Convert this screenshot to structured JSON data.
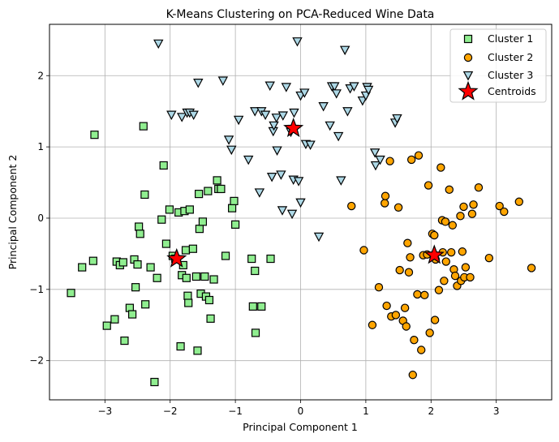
{
  "chart_data": {
    "type": "scatter",
    "title": "K-Means Clustering on PCA-Reduced Wine Data",
    "xlabel": "Principal Component 1",
    "ylabel": "Principal Component 2",
    "xlim": [
      -3.85,
      3.85
    ],
    "ylim": [
      -2.55,
      2.72
    ],
    "xticks": [
      -3,
      -2,
      -1,
      0,
      1,
      2,
      3
    ],
    "yticks": [
      -2,
      -1,
      0,
      1,
      2
    ],
    "grid": true,
    "legend_position": "top-right",
    "series": [
      {
        "name": "Cluster 1",
        "marker": "square",
        "color": "#90ee90",
        "points": [
          [
            -3.52,
            -1.05
          ],
          [
            -3.35,
            -0.69
          ],
          [
            -3.18,
            -0.6
          ],
          [
            -3.16,
            1.17
          ],
          [
            -2.97,
            -1.51
          ],
          [
            -2.85,
            -1.42
          ],
          [
            -2.82,
            -0.61
          ],
          [
            -2.77,
            -0.66
          ],
          [
            -2.72,
            -0.62
          ],
          [
            -2.7,
            -1.72
          ],
          [
            -2.62,
            -1.26
          ],
          [
            -2.58,
            -1.35
          ],
          [
            -2.55,
            -0.58
          ],
          [
            -2.53,
            -0.97
          ],
          [
            -2.5,
            -0.65
          ],
          [
            -2.48,
            -0.12
          ],
          [
            -2.46,
            -0.22
          ],
          [
            -2.41,
            1.29
          ],
          [
            -2.39,
            0.33
          ],
          [
            -2.38,
            -1.21
          ],
          [
            -2.3,
            -0.69
          ],
          [
            -2.24,
            -2.3
          ],
          [
            -2.2,
            -0.84
          ],
          [
            -2.13,
            -0.02
          ],
          [
            -2.1,
            0.74
          ],
          [
            -2.06,
            -0.36
          ],
          [
            -2.01,
            0.12
          ],
          [
            -1.96,
            -0.53
          ],
          [
            -1.92,
            -0.57
          ],
          [
            -1.87,
            0.08
          ],
          [
            -1.84,
            -1.8
          ],
          [
            -1.82,
            -0.8
          ],
          [
            -1.8,
            -0.66
          ],
          [
            -1.78,
            0.1
          ],
          [
            -1.76,
            -0.45
          ],
          [
            -1.75,
            -0.84
          ],
          [
            -1.73,
            -1.09
          ],
          [
            -1.72,
            -1.19
          ],
          [
            -1.7,
            0.12
          ],
          [
            -1.65,
            -0.43
          ],
          [
            -1.6,
            -0.82
          ],
          [
            -1.58,
            -1.86
          ],
          [
            -1.56,
            0.34
          ],
          [
            -1.55,
            -0.15
          ],
          [
            -1.53,
            -1.06
          ],
          [
            -1.5,
            -0.05
          ],
          [
            -1.47,
            -0.82
          ],
          [
            -1.45,
            -1.1
          ],
          [
            -1.42,
            0.38
          ],
          [
            -1.4,
            -1.15
          ],
          [
            -1.38,
            -1.41
          ],
          [
            -1.33,
            -0.86
          ],
          [
            -1.28,
            0.53
          ],
          [
            -1.26,
            0.41
          ],
          [
            -1.22,
            0.41
          ],
          [
            -1.15,
            -0.53
          ],
          [
            -1.05,
            0.14
          ],
          [
            -1.02,
            0.24
          ],
          [
            -1.0,
            -0.09
          ],
          [
            -0.75,
            -0.57
          ],
          [
            -0.73,
            -1.24
          ],
          [
            -0.7,
            -0.74
          ],
          [
            -0.69,
            -1.61
          ],
          [
            -0.6,
            -1.24
          ],
          [
            -0.46,
            -0.57
          ]
        ]
      },
      {
        "name": "Cluster 2",
        "marker": "circle",
        "color": "#ffa500",
        "points": [
          [
            0.78,
            0.17
          ],
          [
            0.97,
            -0.45
          ],
          [
            1.1,
            -1.5
          ],
          [
            1.2,
            -0.97
          ],
          [
            1.29,
            0.21
          ],
          [
            1.3,
            0.31
          ],
          [
            1.32,
            -1.23
          ],
          [
            1.37,
            0.8
          ],
          [
            1.39,
            -1.38
          ],
          [
            1.46,
            -1.36
          ],
          [
            1.5,
            0.15
          ],
          [
            1.52,
            -0.73
          ],
          [
            1.57,
            -1.44
          ],
          [
            1.6,
            -1.26
          ],
          [
            1.62,
            -1.52
          ],
          [
            1.64,
            -0.35
          ],
          [
            1.66,
            -0.76
          ],
          [
            1.68,
            -0.55
          ],
          [
            1.7,
            0.82
          ],
          [
            1.72,
            -2.2
          ],
          [
            1.74,
            -1.71
          ],
          [
            1.79,
            -1.07
          ],
          [
            1.81,
            0.88
          ],
          [
            1.85,
            -1.85
          ],
          [
            1.88,
            -0.52
          ],
          [
            1.9,
            -1.08
          ],
          [
            1.94,
            -0.51
          ],
          [
            1.96,
            0.46
          ],
          [
            1.98,
            -1.61
          ],
          [
            2.02,
            -0.22
          ],
          [
            2.05,
            -0.24
          ],
          [
            2.06,
            -1.43
          ],
          [
            2.07,
            -0.58
          ],
          [
            2.12,
            -1.01
          ],
          [
            2.15,
            0.71
          ],
          [
            2.17,
            -0.03
          ],
          [
            2.18,
            -0.48
          ],
          [
            2.2,
            -0.88
          ],
          [
            2.22,
            -0.05
          ],
          [
            2.23,
            -0.61
          ],
          [
            2.28,
            0.4
          ],
          [
            2.31,
            -0.48
          ],
          [
            2.33,
            -0.1
          ],
          [
            2.35,
            -0.72
          ],
          [
            2.37,
            -0.81
          ],
          [
            2.4,
            -0.95
          ],
          [
            2.45,
            0.03
          ],
          [
            2.46,
            -0.88
          ],
          [
            2.48,
            -0.47
          ],
          [
            2.5,
            0.16
          ],
          [
            2.51,
            -0.83
          ],
          [
            2.53,
            -0.69
          ],
          [
            2.6,
            -0.83
          ],
          [
            2.63,
            0.06
          ],
          [
            2.65,
            0.19
          ],
          [
            2.73,
            0.43
          ],
          [
            2.89,
            -0.56
          ],
          [
            3.05,
            0.17
          ],
          [
            3.12,
            0.09
          ],
          [
            3.35,
            0.23
          ],
          [
            3.54,
            -0.7
          ]
        ]
      },
      {
        "name": "Cluster 3",
        "marker": "triangle-down",
        "color": "#add8e6",
        "points": [
          [
            -2.18,
            2.45
          ],
          [
            -1.98,
            1.45
          ],
          [
            -1.82,
            1.42
          ],
          [
            -1.74,
            1.48
          ],
          [
            -1.7,
            1.48
          ],
          [
            -1.64,
            1.45
          ],
          [
            -1.57,
            1.9
          ],
          [
            -1.19,
            1.93
          ],
          [
            -1.1,
            1.1
          ],
          [
            -1.06,
            0.96
          ],
          [
            -0.95,
            1.38
          ],
          [
            -0.8,
            0.82
          ],
          [
            -0.7,
            1.5
          ],
          [
            -0.63,
            0.36
          ],
          [
            -0.6,
            1.5
          ],
          [
            -0.54,
            1.45
          ],
          [
            -0.47,
            1.86
          ],
          [
            -0.44,
            0.58
          ],
          [
            -0.42,
            1.22
          ],
          [
            -0.41,
            1.3
          ],
          [
            -0.37,
            1.41
          ],
          [
            -0.36,
            0.95
          ],
          [
            -0.3,
            0.61
          ],
          [
            -0.28,
            0.11
          ],
          [
            -0.27,
            1.44
          ],
          [
            -0.22,
            1.84
          ],
          [
            -0.15,
            1.21
          ],
          [
            -0.13,
            0.06
          ],
          [
            -0.11,
            0.54
          ],
          [
            -0.1,
            1.48
          ],
          [
            -0.05,
            2.48
          ],
          [
            -0.03,
            0.52
          ],
          [
            0.0,
            1.72
          ],
          [
            0.0,
            0.22
          ],
          [
            0.06,
            1.76
          ],
          [
            0.08,
            1.04
          ],
          [
            0.15,
            1.03
          ],
          [
            0.28,
            -0.26
          ],
          [
            0.35,
            1.57
          ],
          [
            0.45,
            1.3
          ],
          [
            0.48,
            1.85
          ],
          [
            0.52,
            1.85
          ],
          [
            0.55,
            1.75
          ],
          [
            0.58,
            1.15
          ],
          [
            0.62,
            0.53
          ],
          [
            0.68,
            2.36
          ],
          [
            0.72,
            1.5
          ],
          [
            0.76,
            1.82
          ],
          [
            0.82,
            1.85
          ],
          [
            0.95,
            1.65
          ],
          [
            1.0,
            1.72
          ],
          [
            1.02,
            1.84
          ],
          [
            1.04,
            1.8
          ],
          [
            1.14,
            0.92
          ],
          [
            1.15,
            0.74
          ],
          [
            1.22,
            0.82
          ],
          [
            1.45,
            1.34
          ],
          [
            1.48,
            1.4
          ]
        ]
      },
      {
        "name": "Centroids",
        "marker": "star",
        "color": "#ff0000",
        "points": [
          [
            -1.9,
            -0.57
          ],
          [
            -0.11,
            1.26
          ],
          [
            2.05,
            -0.52
          ]
        ]
      }
    ]
  }
}
